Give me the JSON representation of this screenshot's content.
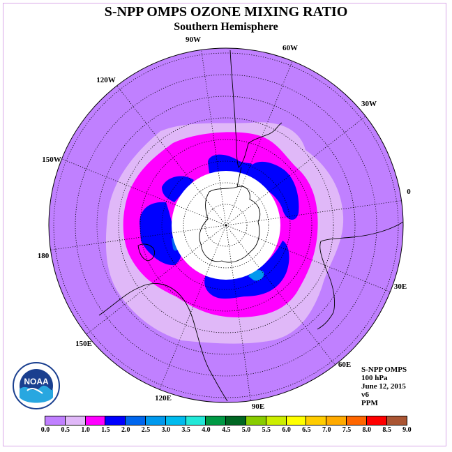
{
  "title": "S-NPP OMPS OZONE MIXING RATIO",
  "subtitle": "Southern Hemisphere",
  "longitude_labels": [
    {
      "text": "90W"
    },
    {
      "text": "60W"
    },
    {
      "text": "30W"
    },
    {
      "text": "0"
    },
    {
      "text": "30E"
    },
    {
      "text": "60E"
    },
    {
      "text": "90E"
    },
    {
      "text": "120E"
    },
    {
      "text": "150E"
    },
    {
      "text": "180"
    },
    {
      "text": "150W"
    },
    {
      "text": "120W"
    }
  ],
  "info": {
    "instrument": "S-NPP OMPS",
    "level": "100 hPa",
    "date": "June 12, 2015",
    "version": "v6",
    "units": "PPM"
  },
  "logo": {
    "text": "NOAA",
    "icon": "noaa-logo-icon"
  },
  "colorbar": {
    "ticks": [
      "0.0",
      "0.5",
      "1.0",
      "1.5",
      "2.0",
      "2.5",
      "3.0",
      "3.5",
      "4.0",
      "4.5",
      "5.0",
      "5.5",
      "6.0",
      "6.5",
      "7.0",
      "7.5",
      "8.0",
      "8.5",
      "9.0"
    ],
    "colors": [
      "#c080ff",
      "#e0b8f8",
      "#ff00ff",
      "#0000ff",
      "#0066ee",
      "#0099ee",
      "#00bbee",
      "#22e8d8",
      "#009944",
      "#006622",
      "#88cc00",
      "#ccee00",
      "#ffff00",
      "#ffcc00",
      "#ffaa00",
      "#ff6600",
      "#ff0000",
      "#aa5533"
    ]
  },
  "colors": {
    "background_field": "#c080ff",
    "band_light": "#e0b8f8",
    "band_magenta": "#ff00ff",
    "band_blue": "#0000ff",
    "band_midblue": "#0066ee",
    "no_data": "#ffffff"
  }
}
